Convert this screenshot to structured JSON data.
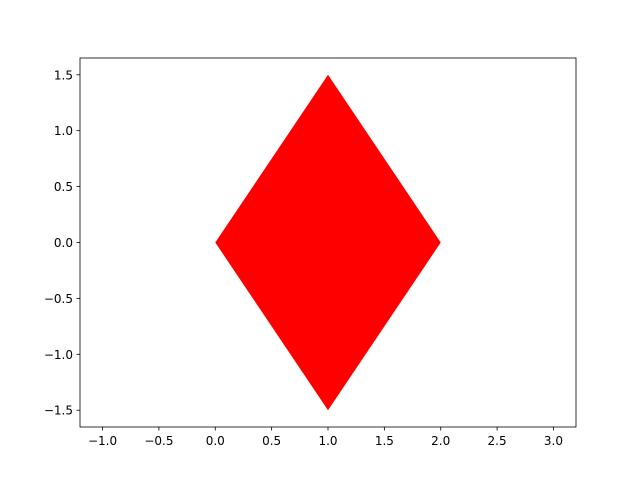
{
  "chart_data": {
    "type": "area",
    "title": "",
    "xlabel": "",
    "ylabel": "",
    "xlim": [
      -1.2,
      3.2
    ],
    "ylim": [
      -1.65,
      1.65
    ],
    "grid": false,
    "xticks": [
      -1.0,
      -0.5,
      0.0,
      0.5,
      1.0,
      1.5,
      2.0,
      2.5,
      3.0
    ],
    "xtick_labels": [
      "−1.0",
      "−0.5",
      "0.0",
      "0.5",
      "1.0",
      "1.5",
      "2.0",
      "2.5",
      "3.0"
    ],
    "yticks": [
      -1.5,
      -1.0,
      -0.5,
      0.0,
      0.5,
      1.0,
      1.5
    ],
    "ytick_labels": [
      "−1.5",
      "−1.0",
      "−0.5",
      "0.0",
      "0.5",
      "1.0",
      "1.5"
    ],
    "series": [
      {
        "shape": "polygon",
        "color": "#ff0000",
        "x": [
          0,
          1,
          2,
          1
        ],
        "y": [
          0,
          1.5,
          0,
          -1.5
        ]
      }
    ]
  }
}
